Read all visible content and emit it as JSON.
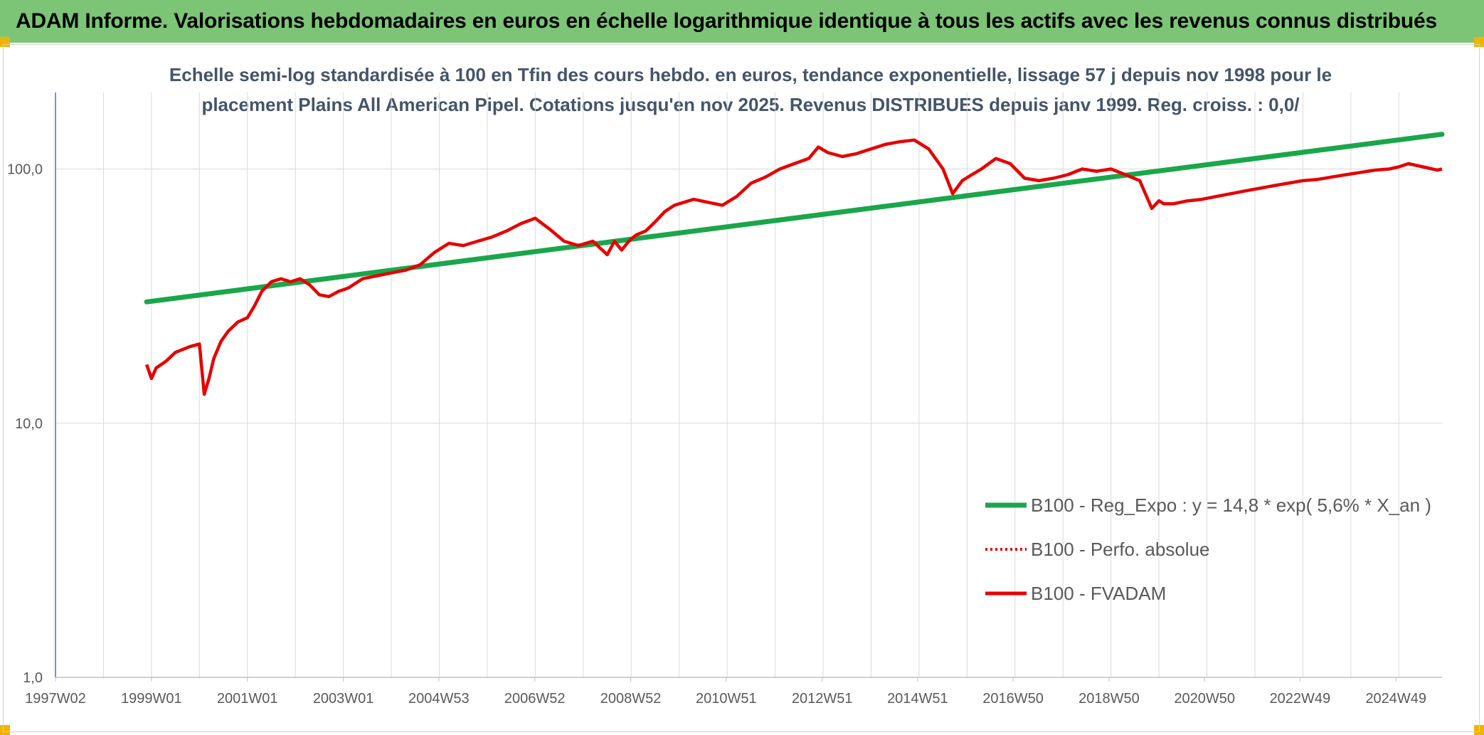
{
  "banner": {
    "title": "ADAM Informe. Valorisations hebdomadaires en euros en échelle logarithmique identique à tous les actifs avec les revenus connus distribués"
  },
  "colors": {
    "banner_bg": "#7cc576",
    "regression": "#1aa64a",
    "fvadam": "#e60000",
    "perfo": "#e60000",
    "grid": "#d9d9d9",
    "axis_text": "#595959",
    "title_text": "#44546a",
    "corner": "#f0b400"
  },
  "chart_data": {
    "type": "line",
    "title_lines": [
      "Echelle semi-log standardisée à 100 en Tfin des cours hebdo. en euros, tendance exponentielle, lissage 57 j depuis nov 1998 pour le",
      "placement Plains All American Pipel. Cotations jusqu'en nov 2025. Revenus DISTRIBUES depuis janv 1999. Reg. croiss. : 0,0/"
    ],
    "y_scale": "log",
    "ylim": [
      1,
      200
    ],
    "y_ticks": [
      1,
      10,
      100
    ],
    "y_tick_labels": [
      "1,0",
      "10,0",
      "100,0"
    ],
    "xlim": [
      1997.0,
      2025.9
    ],
    "x_ticks": [
      1997.0,
      1999.0,
      2001.0,
      2003.0,
      2004.99,
      2006.99,
      2008.99,
      2010.98,
      2012.98,
      2014.97,
      2016.96,
      2018.96,
      2020.95,
      2022.94,
      2024.94
    ],
    "x_tick_labels": [
      "1997W02",
      "1999W01",
      "2001W01",
      "2003W01",
      "2004W53",
      "2006W52",
      "2008W52",
      "2010W51",
      "2012W51",
      "2014W51",
      "2016W50",
      "2018W50",
      "2020W50",
      "2022W49",
      "2024W49"
    ],
    "grid": true,
    "legend_position": "bottom-right",
    "series": [
      {
        "name": "B100 - Reg_Expo : y = 14,8 * exp( 5,6% *  X_an )",
        "style": "solid-thick",
        "color": "#1aa64a",
        "x": [
          1998.9,
          2025.9
        ],
        "y": [
          30.0,
          137.0
        ]
      },
      {
        "name": "B100 - Perfo. absolue",
        "style": "dotted",
        "color": "#e60000",
        "x": [],
        "y": []
      },
      {
        "name": "B100 - FVADAM",
        "style": "solid",
        "color": "#e60000",
        "x": [
          1998.9,
          1999.0,
          1999.1,
          1999.3,
          1999.5,
          1999.8,
          2000.0,
          2000.1,
          2000.2,
          2000.3,
          2000.45,
          2000.6,
          2000.8,
          2001.0,
          2001.15,
          2001.3,
          2001.5,
          2001.7,
          2001.9,
          2002.1,
          2002.3,
          2002.5,
          2002.7,
          2002.9,
          2003.1,
          2003.4,
          2003.7,
          2004.0,
          2004.3,
          2004.6,
          2004.9,
          2005.2,
          2005.5,
          2005.8,
          2006.1,
          2006.4,
          2006.7,
          2007.0,
          2007.3,
          2007.6,
          2007.9,
          2008.2,
          2008.5,
          2008.65,
          2008.8,
          2008.95,
          2009.1,
          2009.3,
          2009.5,
          2009.7,
          2009.9,
          2010.1,
          2010.3,
          2010.6,
          2010.9,
          2011.2,
          2011.5,
          2011.8,
          2012.1,
          2012.4,
          2012.7,
          2012.9,
          2013.1,
          2013.4,
          2013.7,
          2014.0,
          2014.3,
          2014.6,
          2014.9,
          2015.2,
          2015.5,
          2015.7,
          2015.9,
          2016.1,
          2016.3,
          2016.6,
          2016.9,
          2017.2,
          2017.5,
          2017.8,
          2018.1,
          2018.4,
          2018.7,
          2019.0,
          2019.3,
          2019.6,
          2019.85,
          2020.0,
          2020.1,
          2020.3,
          2020.6,
          2020.9,
          2021.2,
          2021.5,
          2021.8,
          2022.1,
          2022.4,
          2022.7,
          2023.0,
          2023.3,
          2023.6,
          2023.9,
          2024.2,
          2024.5,
          2024.8,
          2025.0,
          2025.2,
          2025.4,
          2025.6,
          2025.8,
          2025.9
        ],
        "y": [
          17.0,
          15.0,
          16.5,
          17.5,
          19.0,
          20.0,
          20.5,
          13.0,
          15.0,
          18.0,
          21.0,
          23.0,
          25.0,
          26.0,
          29.0,
          33.0,
          36.0,
          37.0,
          36.0,
          37.0,
          35.0,
          32.0,
          31.5,
          33.0,
          34.0,
          37.0,
          38.0,
          39.0,
          40.0,
          42.0,
          47.0,
          51.0,
          50.0,
          52.0,
          54.0,
          57.0,
          61.0,
          64.0,
          58.0,
          52.0,
          50.0,
          52.0,
          46.0,
          52.0,
          48.0,
          52.0,
          55.0,
          57.0,
          62.0,
          68.0,
          72.0,
          74.0,
          76.0,
          74.0,
          72.0,
          78.0,
          88.0,
          93.0,
          100.0,
          105.0,
          110.0,
          122.0,
          116.0,
          112.0,
          115.0,
          120.0,
          125.0,
          128.0,
          130.0,
          120.0,
          100.0,
          80.0,
          90.0,
          95.0,
          100.0,
          110.0,
          105.0,
          92.0,
          90.0,
          92.0,
          95.0,
          100.0,
          98.0,
          100.0,
          95.0,
          90.0,
          70.0,
          75.0,
          73.0,
          73.0,
          75.0,
          76.0,
          78.0,
          80.0,
          82.0,
          84.0,
          86.0,
          88.0,
          90.0,
          91.0,
          93.0,
          95.0,
          97.0,
          99.0,
          100.0,
          102.0,
          105.0,
          103.0,
          101.0,
          99.0,
          100.0
        ]
      }
    ]
  }
}
